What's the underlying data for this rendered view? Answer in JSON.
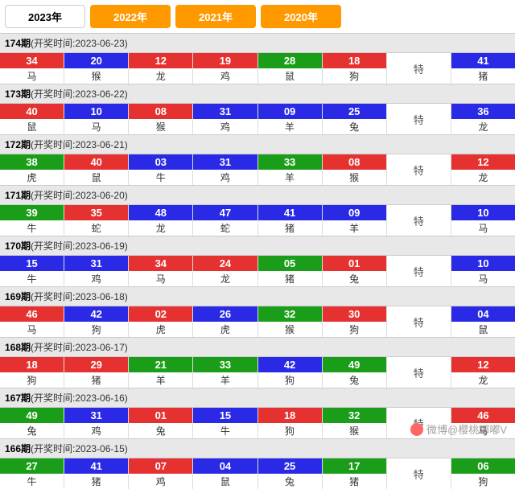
{
  "tabs": [
    {
      "label": "2023年",
      "active": true
    },
    {
      "label": "2022年",
      "active": false
    },
    {
      "label": "2021年",
      "active": false
    },
    {
      "label": "2020年",
      "active": false
    }
  ],
  "te_label": "特",
  "periods": [
    {
      "num": "174",
      "date": "2023-06-23",
      "balls": [
        {
          "n": "34",
          "c": "red",
          "z": "马"
        },
        {
          "n": "20",
          "c": "blue",
          "z": "猴"
        },
        {
          "n": "12",
          "c": "red",
          "z": "龙"
        },
        {
          "n": "19",
          "c": "red",
          "z": "鸡"
        },
        {
          "n": "28",
          "c": "green",
          "z": "鼠"
        },
        {
          "n": "18",
          "c": "red",
          "z": "狗"
        }
      ],
      "special": {
        "n": "41",
        "c": "blue",
        "z": "猪"
      }
    },
    {
      "num": "173",
      "date": "2023-06-22",
      "balls": [
        {
          "n": "40",
          "c": "red",
          "z": "鼠"
        },
        {
          "n": "10",
          "c": "blue",
          "z": "马"
        },
        {
          "n": "08",
          "c": "red",
          "z": "猴"
        },
        {
          "n": "31",
          "c": "blue",
          "z": "鸡"
        },
        {
          "n": "09",
          "c": "blue",
          "z": "羊"
        },
        {
          "n": "25",
          "c": "blue",
          "z": "兔"
        }
      ],
      "special": {
        "n": "36",
        "c": "blue",
        "z": "龙"
      }
    },
    {
      "num": "172",
      "date": "2023-06-21",
      "balls": [
        {
          "n": "38",
          "c": "green",
          "z": "虎"
        },
        {
          "n": "40",
          "c": "red",
          "z": "鼠"
        },
        {
          "n": "03",
          "c": "blue",
          "z": "牛"
        },
        {
          "n": "31",
          "c": "blue",
          "z": "鸡"
        },
        {
          "n": "33",
          "c": "green",
          "z": "羊"
        },
        {
          "n": "08",
          "c": "red",
          "z": "猴"
        }
      ],
      "special": {
        "n": "12",
        "c": "red",
        "z": "龙"
      }
    },
    {
      "num": "171",
      "date": "2023-06-20",
      "balls": [
        {
          "n": "39",
          "c": "green",
          "z": "牛"
        },
        {
          "n": "35",
          "c": "red",
          "z": "蛇"
        },
        {
          "n": "48",
          "c": "blue",
          "z": "龙"
        },
        {
          "n": "47",
          "c": "blue",
          "z": "蛇"
        },
        {
          "n": "41",
          "c": "blue",
          "z": "猪"
        },
        {
          "n": "09",
          "c": "blue",
          "z": "羊"
        }
      ],
      "special": {
        "n": "10",
        "c": "blue",
        "z": "马"
      }
    },
    {
      "num": "170",
      "date": "2023-06-19",
      "balls": [
        {
          "n": "15",
          "c": "blue",
          "z": "牛"
        },
        {
          "n": "31",
          "c": "blue",
          "z": "鸡"
        },
        {
          "n": "34",
          "c": "red",
          "z": "马"
        },
        {
          "n": "24",
          "c": "red",
          "z": "龙"
        },
        {
          "n": "05",
          "c": "green",
          "z": "猪"
        },
        {
          "n": "01",
          "c": "red",
          "z": "兔"
        }
      ],
      "special": {
        "n": "10",
        "c": "blue",
        "z": "马"
      }
    },
    {
      "num": "169",
      "date": "2023-06-18",
      "balls": [
        {
          "n": "46",
          "c": "red",
          "z": "马"
        },
        {
          "n": "42",
          "c": "blue",
          "z": "狗"
        },
        {
          "n": "02",
          "c": "red",
          "z": "虎"
        },
        {
          "n": "26",
          "c": "blue",
          "z": "虎"
        },
        {
          "n": "32",
          "c": "green",
          "z": "猴"
        },
        {
          "n": "30",
          "c": "red",
          "z": "狗"
        }
      ],
      "special": {
        "n": "04",
        "c": "blue",
        "z": "鼠"
      }
    },
    {
      "num": "168",
      "date": "2023-06-17",
      "balls": [
        {
          "n": "18",
          "c": "red",
          "z": "狗"
        },
        {
          "n": "29",
          "c": "red",
          "z": "猪"
        },
        {
          "n": "21",
          "c": "green",
          "z": "羊"
        },
        {
          "n": "33",
          "c": "green",
          "z": "羊"
        },
        {
          "n": "42",
          "c": "blue",
          "z": "狗"
        },
        {
          "n": "49",
          "c": "green",
          "z": "兔"
        }
      ],
      "special": {
        "n": "12",
        "c": "red",
        "z": "龙"
      }
    },
    {
      "num": "167",
      "date": "2023-06-16",
      "balls": [
        {
          "n": "49",
          "c": "green",
          "z": "兔"
        },
        {
          "n": "31",
          "c": "blue",
          "z": "鸡"
        },
        {
          "n": "01",
          "c": "red",
          "z": "兔"
        },
        {
          "n": "15",
          "c": "blue",
          "z": "牛"
        },
        {
          "n": "18",
          "c": "red",
          "z": "狗"
        },
        {
          "n": "32",
          "c": "green",
          "z": "猴"
        }
      ],
      "special": {
        "n": "46",
        "c": "red",
        "z": "马"
      }
    },
    {
      "num": "166",
      "date": "2023-06-15",
      "balls": [
        {
          "n": "27",
          "c": "green",
          "z": "牛"
        },
        {
          "n": "41",
          "c": "blue",
          "z": "猪"
        },
        {
          "n": "07",
          "c": "red",
          "z": "鸡"
        },
        {
          "n": "04",
          "c": "blue",
          "z": "鼠"
        },
        {
          "n": "25",
          "c": "blue",
          "z": "兔"
        },
        {
          "n": "17",
          "c": "green",
          "z": "猪"
        }
      ],
      "special": {
        "n": "06",
        "c": "green",
        "z": "狗"
      }
    }
  ],
  "watermark": "微博@樱桃嘟嘟V"
}
